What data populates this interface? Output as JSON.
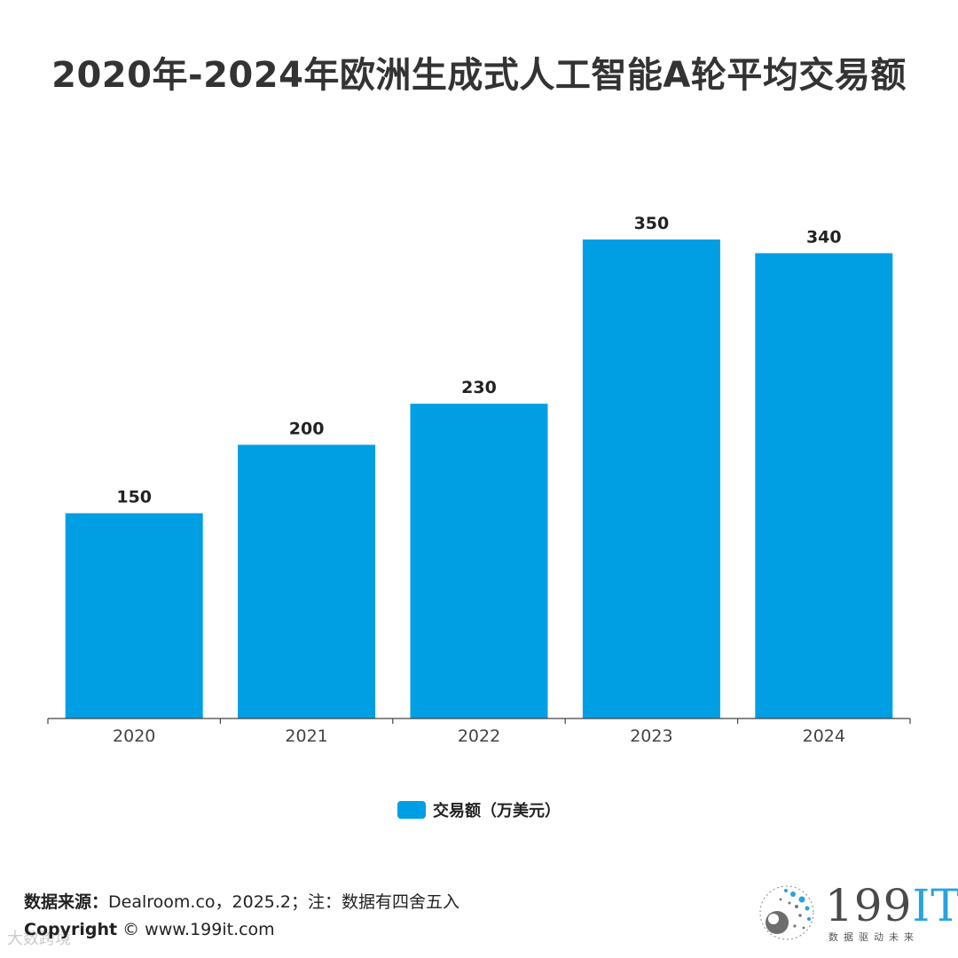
{
  "title": "2020年-2024年欧洲生成式人工智能A轮平均交易额",
  "chart_data": {
    "type": "bar",
    "title": "2020年-2024年欧洲生成式人工智能A轮平均交易额",
    "categories": [
      "2020",
      "2021",
      "2022",
      "2023",
      "2024"
    ],
    "series": [
      {
        "name": "交易额（万美元）",
        "values": [
          150,
          200,
          230,
          350,
          340
        ]
      }
    ],
    "xlabel": "",
    "ylabel": "",
    "ylim": [
      0,
      350
    ],
    "grid": false,
    "legend": "bottom-center",
    "colors": {
      "bar": "#009FE3",
      "axis": "#444444",
      "label": "#222222",
      "tick": "#444444"
    }
  },
  "legend": {
    "label": "交易额（万美元）"
  },
  "source": {
    "label": "数据来源：",
    "text": "Dealroom.co，2025.2；注：数据有四舍五入"
  },
  "copyright": {
    "label": "Copyright",
    "text": "© www.199it.com"
  },
  "watermark": "大数跨境",
  "logo": {
    "number": "199",
    "it": "IT",
    "slogan": "数据驱动未来"
  }
}
